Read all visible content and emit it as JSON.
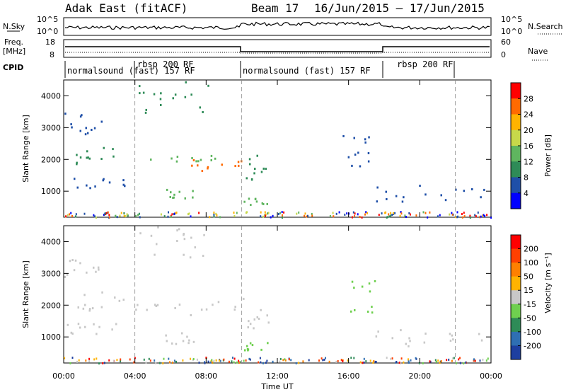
{
  "header": {
    "station": "Adak East (fitACF)",
    "beam": "Beam 17",
    "dates": "16/Jun/2015 – 17/Jun/2015"
  },
  "noise_panel": {
    "left_label": "N.Sky",
    "right_label": "N.Search",
    "ticks": [
      "10^5",
      "10^0"
    ]
  },
  "freq_panel": {
    "left_label_1": "Freq.",
    "left_label_2": "[MHz]",
    "right_label": "Nave",
    "left_ticks": [
      "18",
      "8"
    ],
    "right_ticks": [
      "60",
      "0"
    ]
  },
  "cpid": {
    "label": "CPID",
    "segments": [
      {
        "label": "normalsound (fast) 157 RF"
      },
      {
        "label": "rbsp 200 RF"
      },
      {
        "label": "normalsound (fast) 157 RF"
      },
      {
        "label": "rbsp 200 RF"
      }
    ]
  },
  "chart_data": [
    {
      "type": "heatmap",
      "name": "power",
      "ylabel": "Slant Range [km]",
      "xlabel": "Time UT",
      "xticks": [
        "00:00",
        "04:00",
        "08:00",
        "12:00",
        "16:00",
        "20:00",
        "00:00"
      ],
      "yticks": [
        "1000",
        "2000",
        "3000",
        "4000"
      ],
      "xlim_hours": [
        0,
        24
      ],
      "ylim_km": [
        180,
        4500
      ],
      "colorbar": {
        "label": "Power [dB]",
        "ticks": [
          "4",
          "8",
          "12",
          "16",
          "20",
          "24",
          "28"
        ],
        "colors": [
          "#0000ff",
          "#1f4fa8",
          "#2e8b57",
          "#5fb55f",
          "#c7d84a",
          "#ffb300",
          "#ff6a00",
          "#ff0000"
        ]
      },
      "bands": [
        {
          "t": [
            0.0,
            2.3
          ],
          "r": [
            2800,
            3500
          ],
          "color_index": 1
        },
        {
          "t": [
            0.6,
            3.5
          ],
          "r": [
            1850,
            2450
          ],
          "color_index": 2
        },
        {
          "t": [
            0.0,
            3.5
          ],
          "r": [
            1100,
            1450
          ],
          "color_index": 1
        },
        {
          "t": [
            4.0,
            10.0
          ],
          "r": [
            1950,
            2150
          ],
          "color_index": 3
        },
        {
          "t": [
            7.0,
            10.0
          ],
          "r": [
            1650,
            2050
          ],
          "color_index": 6
        },
        {
          "t": [
            4.2,
            8.1
          ],
          "r": [
            3500,
            4500
          ],
          "color_index": 2
        },
        {
          "t": [
            5.5,
            7.3
          ],
          "r": [
            800,
            1200
          ],
          "color_index": 3
        },
        {
          "t": [
            10.0,
            11.6
          ],
          "r": [
            1300,
            2250
          ],
          "color_index": 2
        },
        {
          "t": [
            10.0,
            11.6
          ],
          "r": [
            600,
            850
          ],
          "color_index": 3
        },
        {
          "t": [
            15.5,
            17.5
          ],
          "r": [
            1800,
            2800
          ],
          "color_index": 1
        },
        {
          "t": [
            17.5,
            23.7
          ],
          "r": [
            700,
            1300
          ],
          "color_index": 1
        }
      ]
    },
    {
      "type": "heatmap",
      "name": "velocity",
      "ylabel": "Slant Range [km]",
      "xlabel": "Time UT",
      "xticks": [
        "00:00",
        "04:00",
        "08:00",
        "12:00",
        "16:00",
        "20:00",
        "00:00"
      ],
      "yticks": [
        "1000",
        "2000",
        "3000",
        "4000"
      ],
      "xlim_hours": [
        0,
        24
      ],
      "ylim_km": [
        180,
        4500
      ],
      "colorbar": {
        "label": "Velocity [m s⁻¹]",
        "ticks": [
          "200",
          "100",
          "50",
          "15",
          "-15",
          "-50",
          "-100",
          "-200"
        ],
        "colors": [
          "#1e3fa0",
          "#2f6fb3",
          "#2e8b57",
          "#6fd04f",
          "#c8c8c8",
          "#ffb300",
          "#ff8000",
          "#ff4000",
          "#ff0000"
        ]
      },
      "bands": [
        {
          "t": [
            0.0,
            2.3
          ],
          "r": [
            2800,
            3500
          ],
          "color_index": 4
        },
        {
          "t": [
            0.6,
            3.5
          ],
          "r": [
            1850,
            2450
          ],
          "color_index": 4
        },
        {
          "t": [
            0.0,
            3.5
          ],
          "r": [
            1100,
            1450
          ],
          "color_index": 4
        },
        {
          "t": [
            4.0,
            10.0
          ],
          "r": [
            1650,
            2150
          ],
          "color_index": 4
        },
        {
          "t": [
            4.2,
            8.1
          ],
          "r": [
            3500,
            4500
          ],
          "color_index": 4
        },
        {
          "t": [
            5.5,
            7.3
          ],
          "r": [
            800,
            1200
          ],
          "color_index": 4
        },
        {
          "t": [
            10.0,
            11.6
          ],
          "r": [
            1300,
            2250
          ],
          "color_index": 4
        },
        {
          "t": [
            10.0,
            11.6
          ],
          "r": [
            600,
            850
          ],
          "color_index": 3
        },
        {
          "t": [
            16.0,
            17.5
          ],
          "r": [
            1800,
            2800
          ],
          "color_index": 3
        },
        {
          "t": [
            17.5,
            23.7
          ],
          "r": [
            700,
            1300
          ],
          "color_index": 4
        }
      ]
    }
  ]
}
